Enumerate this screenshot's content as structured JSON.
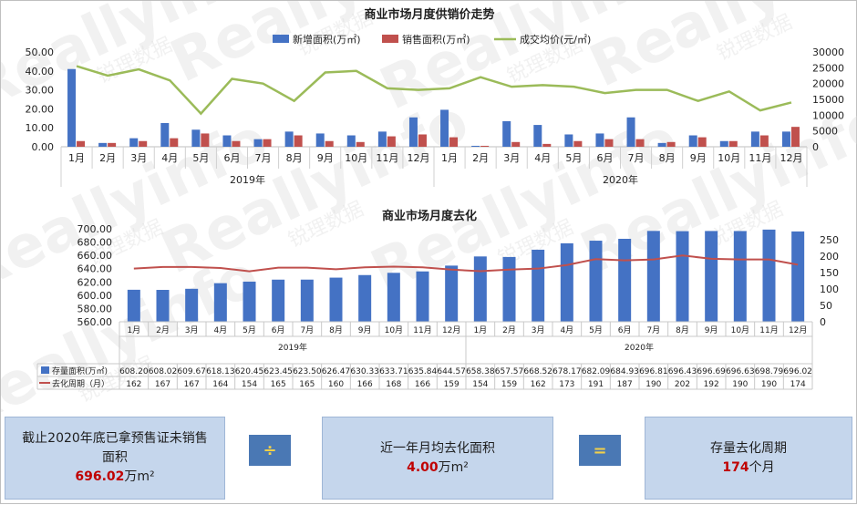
{
  "chart_data": [
    {
      "type": "bar",
      "title": "商业市场月度供销价走势",
      "categories": [
        "1月",
        "2月",
        "3月",
        "4月",
        "5月",
        "6月",
        "7月",
        "8月",
        "9月",
        "10月",
        "11月",
        "12月",
        "1月",
        "2月",
        "3月",
        "4月",
        "5月",
        "6月",
        "7月",
        "8月",
        "9月",
        "10月",
        "11月",
        "12月"
      ],
      "year_groups": [
        {
          "label": "2019年"
        },
        {
          "label": "2020年"
        }
      ],
      "series": [
        {
          "name": "新增面积(万㎡)",
          "kind": "bar",
          "color": "#4472c4",
          "values": [
            41.0,
            2.0,
            4.5,
            12.5,
            9.0,
            6.0,
            4.0,
            8.0,
            7.0,
            6.0,
            8.0,
            15.5,
            19.5,
            0.5,
            13.5,
            11.5,
            6.5,
            7.0,
            15.5,
            2.0,
            6.0,
            3.0,
            8.0,
            8.0
          ]
        },
        {
          "name": "销售面积(万㎡)",
          "kind": "bar",
          "color": "#c0504d",
          "values": [
            3.0,
            2.0,
            3.0,
            4.5,
            7.0,
            3.0,
            4.0,
            6.0,
            3.0,
            2.5,
            5.5,
            6.5,
            5.0,
            0.5,
            2.5,
            1.5,
            3.0,
            4.0,
            4.0,
            2.5,
            5.0,
            3.0,
            6.0,
            10.5
          ]
        },
        {
          "name": "成交均价(元/㎡)",
          "kind": "line",
          "axis": "right",
          "color": "#9bbb59",
          "values": [
            25500,
            22500,
            24500,
            21000,
            10500,
            21500,
            20000,
            14500,
            23500,
            24000,
            18500,
            18000,
            18500,
            22000,
            19000,
            19500,
            19000,
            17000,
            18000,
            18000,
            14500,
            17500,
            11500,
            14000
          ]
        }
      ],
      "ylim_left": [
        0,
        50
      ],
      "yticks_left": [
        "50.00",
        "40.00",
        "30.00",
        "20.00",
        "10.00",
        "0.00"
      ],
      "ylim_right": [
        0,
        30000
      ],
      "yticks_right": [
        "30000",
        "25000",
        "20000",
        "15000",
        "10000",
        "5000",
        "0"
      ],
      "legend_position": "top"
    },
    {
      "type": "bar",
      "title": "商业市场月度去化",
      "categories": [
        "1月",
        "2月",
        "3月",
        "4月",
        "5月",
        "6月",
        "7月",
        "8月",
        "9月",
        "10月",
        "11月",
        "12月",
        "1月",
        "2月",
        "3月",
        "4月",
        "5月",
        "6月",
        "7月",
        "8月",
        "9月",
        "10月",
        "11月",
        "12月"
      ],
      "year_groups": [
        {
          "label": "2019年"
        },
        {
          "label": "2020年"
        }
      ],
      "series": [
        {
          "name": "存量面积(万㎡)",
          "kind": "bar",
          "color": "#4472c4",
          "values": [
            608.2,
            608.02,
            609.67,
            618.13,
            620.45,
            623.45,
            623.5,
            626.47,
            630.33,
            633.71,
            635.84,
            644.57,
            658.38,
            657.57,
            668.52,
            678.17,
            682.09,
            684.93,
            696.81,
            696.43,
            696.69,
            696.63,
            698.79,
            696.02
          ],
          "labels": [
            "608.20",
            "608.02",
            "609.67",
            "618.13",
            "620.45",
            "623.45",
            "623.50",
            "626.47",
            "630.33",
            "633.71",
            "635.84",
            "644.57",
            "658.38",
            "657.57",
            "668.52",
            "678.17",
            "682.09",
            "684.93",
            "696.81",
            "696.43",
            "696.69",
            "696.63",
            "698.79",
            "696.02"
          ]
        },
        {
          "name": "去化周期（月）",
          "kind": "line",
          "axis": "right",
          "color": "#c0504d",
          "values": [
            162,
            167,
            167,
            164,
            154,
            165,
            165,
            160,
            166,
            168,
            166,
            159,
            154,
            159,
            162,
            173,
            191,
            187,
            190,
            202,
            192,
            190,
            190,
            174
          ],
          "labels": [
            "162",
            "167",
            "167",
            "164",
            "154",
            "165",
            "165",
            "160",
            "166",
            "168",
            "166",
            "159",
            "154",
            "159",
            "162",
            "173",
            "191",
            "187",
            "190",
            "202",
            "192",
            "190",
            "190",
            "174"
          ]
        }
      ],
      "ylim_left": [
        560,
        700
      ],
      "yticks_left": [
        "700.00",
        "680.00",
        "660.00",
        "640.00",
        "620.00",
        "600.00",
        "580.00",
        "560.00"
      ],
      "ylim_right": [
        0,
        250
      ],
      "yticks_right": [
        "250",
        "200",
        "150",
        "100",
        "50",
        "0"
      ],
      "table_below": true
    }
  ],
  "summary": {
    "box1_text": "截止2020年底已拿预售证未销售面积",
    "box1_value": "696.02",
    "box1_unit": "万m²",
    "op1": "÷",
    "box2_text": "近一年月均去化面积",
    "box2_value": "4.00",
    "box2_unit": "万m²",
    "op2": "=",
    "box3_text": "存量去化周期",
    "box3_value": "174",
    "box3_unit": "个月"
  },
  "watermark": {
    "text": "Reallyinfo",
    "sub": "锐理数据"
  }
}
